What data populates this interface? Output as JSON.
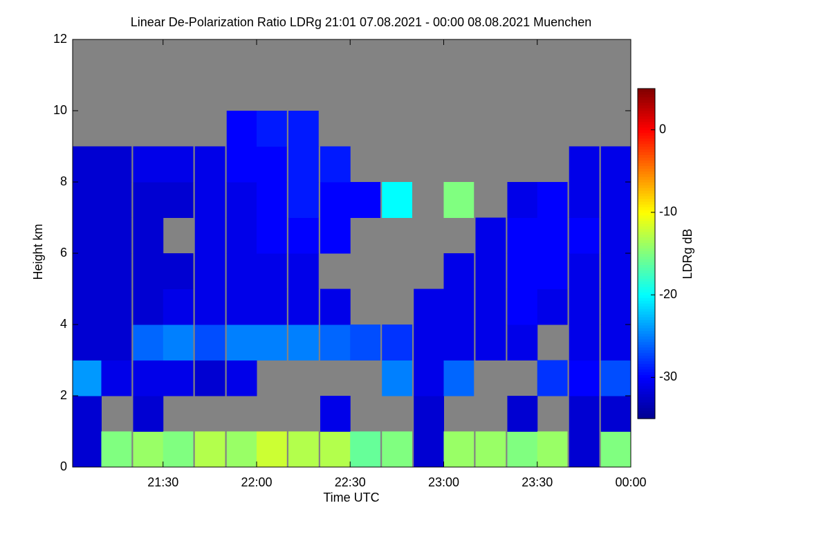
{
  "chart_data": {
    "type": "heatmap",
    "title": "Linear De-Polarization Ratio LDRg   21:01 07.08.2021 - 00:00 08.08.2021 Muenchen",
    "x_label": "Time UTC",
    "y_label": "Height km",
    "colorbar_label": "LDRg dB",
    "colormap": "jet",
    "xlim": [
      21.0167,
      24.0
    ],
    "xticks": [
      {
        "value": 21.5,
        "label": "21:30"
      },
      {
        "value": 22.0,
        "label": "22:00"
      },
      {
        "value": 22.5,
        "label": "22:30"
      },
      {
        "value": 23.0,
        "label": "23:00"
      },
      {
        "value": 23.5,
        "label": "23:30"
      },
      {
        "value": 24.0,
        "label": "00:00"
      }
    ],
    "ylim": [
      0,
      12
    ],
    "yticks": [
      0,
      2,
      4,
      6,
      8,
      10,
      12
    ],
    "zlim": [
      -35,
      5
    ],
    "zticks": [
      0,
      -10,
      -20,
      -30
    ],
    "x": [
      21.09,
      21.25,
      21.42,
      21.58,
      21.75,
      21.92,
      22.08,
      22.25,
      22.42,
      22.58,
      22.75,
      22.92,
      23.08,
      23.25,
      23.42,
      23.58,
      23.75,
      23.92
    ],
    "y": [
      0.5,
      1.5,
      2.5,
      3.5,
      4.5,
      5.5,
      6.5,
      7.5,
      8.5,
      9.5,
      10.5,
      11.5
    ],
    "values": [
      [
        -32,
        -32,
        -24,
        -32,
        -32,
        -32,
        -32,
        -32,
        -32,
        null,
        null,
        null
      ],
      [
        -15,
        null,
        -31,
        -32,
        -32,
        -32,
        -32,
        -32,
        -32,
        null,
        null,
        null
      ],
      [
        -14,
        -32,
        -31,
        -26,
        -32,
        -32,
        -32,
        -32,
        -31,
        null,
        null,
        null
      ],
      [
        -15,
        null,
        -31,
        -25,
        -31,
        -32,
        null,
        -32,
        -31,
        null,
        null,
        null
      ],
      [
        -13,
        null,
        -32,
        -27,
        -31,
        -31,
        -31,
        -31,
        -31,
        null,
        null,
        null
      ],
      [
        -14,
        null,
        -31,
        -25,
        -31,
        -31,
        -31,
        -31,
        -30,
        -30,
        null,
        null
      ],
      [
        -12,
        null,
        null,
        -25,
        -31,
        -31,
        -30,
        -30,
        -30,
        -29,
        null,
        null
      ],
      [
        -13,
        null,
        null,
        -25,
        -31,
        -31,
        -30,
        -29,
        -29,
        -29,
        null,
        null
      ],
      [
        -13,
        -31,
        null,
        -26,
        -31,
        null,
        -30,
        -30,
        -29,
        null,
        null,
        null
      ],
      [
        -16,
        null,
        null,
        -27,
        null,
        null,
        null,
        -30,
        null,
        null,
        null,
        null
      ],
      [
        -15,
        null,
        -25,
        -28,
        null,
        null,
        null,
        -20,
        null,
        null,
        null,
        null
      ],
      [
        -32,
        -32,
        -31,
        -31,
        -31,
        null,
        null,
        null,
        null,
        null,
        null,
        null
      ],
      [
        -14,
        null,
        -26,
        -31,
        -31,
        -31,
        null,
        -15,
        null,
        null,
        null,
        null
      ],
      [
        -14,
        null,
        null,
        -31,
        -31,
        -31,
        -31,
        null,
        null,
        null,
        null,
        null
      ],
      [
        -15,
        -32,
        null,
        -31,
        -30,
        -30,
        -30,
        -31,
        null,
        null,
        null,
        null
      ],
      [
        -14,
        null,
        -28,
        null,
        -31,
        -30,
        -30,
        -30,
        null,
        null,
        null,
        null
      ],
      [
        -32,
        -32,
        -30,
        -31,
        -31,
        -31,
        -30,
        -31,
        -31,
        null,
        null,
        null
      ],
      [
        -15,
        -32,
        -27,
        -31,
        -31,
        -31,
        -31,
        -31,
        -31,
        null,
        null,
        null
      ]
    ]
  }
}
